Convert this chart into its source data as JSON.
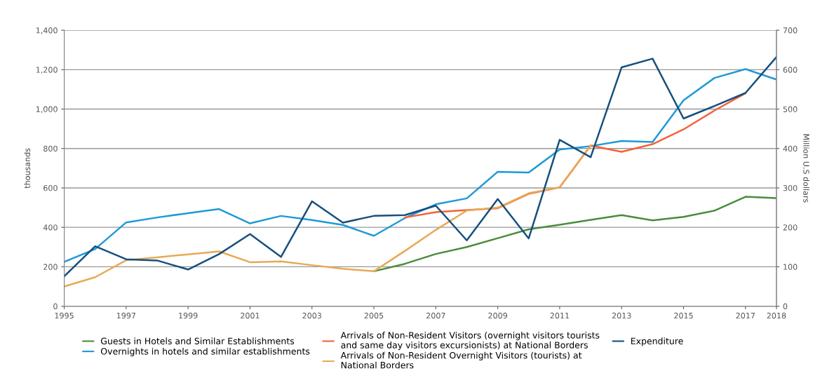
{
  "chart_data": {
    "type": "line",
    "ylabel": "thousands",
    "y2label": "Million U.S dollars",
    "x": [
      1995,
      1996,
      1997,
      1998,
      1999,
      2000,
      2001,
      2002,
      2003,
      2004,
      2005,
      2006,
      2007,
      2008,
      2009,
      2010,
      2011,
      2012,
      2013,
      2014,
      2015,
      2016,
      2017,
      2018
    ],
    "xlim": [
      1995,
      2018
    ],
    "xticks": [
      1995,
      1997,
      1999,
      2001,
      2003,
      2005,
      2007,
      2009,
      2011,
      2013,
      2015,
      2017,
      2018
    ],
    "ylim": [
      0,
      1400
    ],
    "yticks": [
      0,
      200,
      400,
      600,
      800,
      {
        "value": 1000,
        "label": "1,000"
      },
      {
        "value": 1200,
        "label": "1,200"
      },
      {
        "value": 1400,
        "label": "1,400"
      }
    ],
    "y2lim": [
      0,
      700
    ],
    "y2ticks": [
      0,
      100,
      200,
      300,
      400,
      500,
      600,
      700
    ],
    "grid": "y",
    "legend": "bottom",
    "marker": "none",
    "line_style": "solid",
    "series": [
      {
        "name": "Guests in Hotels and Similar Establishments",
        "color": "#4a8c3a",
        "values": [
          null,
          null,
          null,
          null,
          null,
          null,
          null,
          null,
          null,
          null,
          177,
          215,
          265,
          300,
          345,
          390,
          413,
          438,
          462,
          435,
          453,
          485,
          555,
          548
        ]
      },
      {
        "name": "Overnights in hotels and similar establishments",
        "color": "#1f9ad6",
        "values": [
          225,
          290,
          425,
          450,
          472,
          493,
          420,
          458,
          437,
          412,
          357,
          447,
          517,
          547,
          682,
          678,
          795,
          812,
          838,
          833,
          1045,
          1158,
          1203,
          1150
        ]
      },
      {
        "name": "Arrivals of Non-Resident Visitors (overnight visitors tourists\nand same day visitors excursionists) at National Borders",
        "color": "#f4623a",
        "values": [
          null,
          null,
          null,
          null,
          null,
          null,
          null,
          null,
          null,
          null,
          null,
          450,
          477,
          488,
          497,
          570,
          603,
          815,
          783,
          822,
          897,
          993,
          1080,
          null
        ]
      },
      {
        "name": "Arrivals of Non-Resident Overnight Visitors (tourists) at\nNational Borders",
        "color": "#e8a955",
        "values": [
          100,
          147,
          233,
          248,
          263,
          278,
          223,
          227,
          208,
          190,
          177,
          280,
          387,
          485,
          500,
          573,
          603,
          815,
          null,
          null,
          null,
          null,
          null,
          null
        ]
      },
      {
        "name": "Expenditure",
        "color": "#16507e",
        "axis": "y2",
        "values": [
          76,
          152,
          119,
          116,
          93,
          132,
          183,
          125,
          266,
          212,
          229,
          231,
          255,
          167,
          272,
          172,
          422,
          378,
          606,
          628,
          476,
          508,
          541,
          632
        ]
      }
    ]
  }
}
